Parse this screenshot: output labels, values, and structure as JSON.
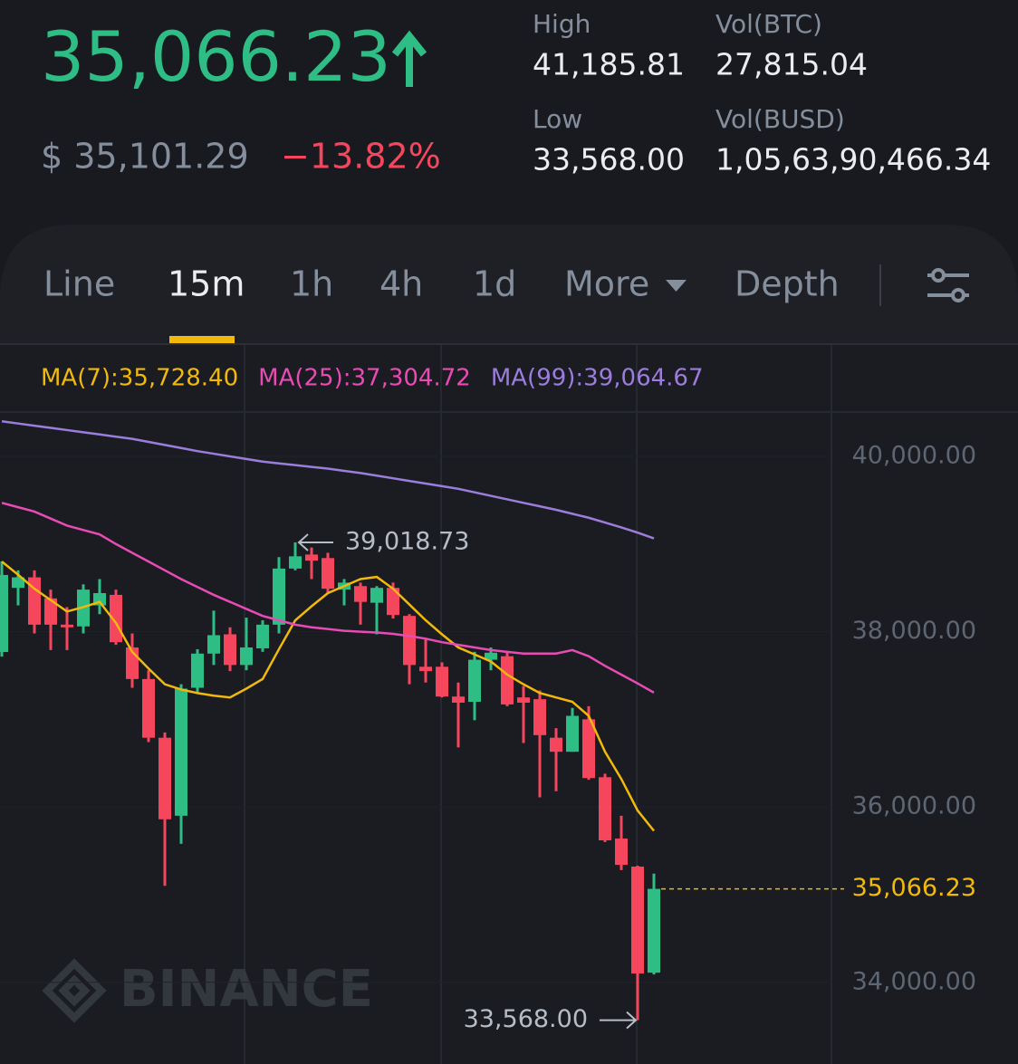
{
  "header": {
    "price": "35,066.23",
    "fiat_price": "$ 35,101.29",
    "change": "−13.82%",
    "stats": [
      {
        "label": "High",
        "value": "41,185.81"
      },
      {
        "label": "Vol(BTC)",
        "value": "27,815.04"
      },
      {
        "label": "Low",
        "value": "33,568.00"
      },
      {
        "label": "Vol(BUSD)",
        "value": "1,05,63,90,466.34"
      }
    ]
  },
  "tabs": [
    "Line",
    "15m",
    "1h",
    "4h",
    "1d",
    "More",
    "Depth"
  ],
  "active_tab": 1,
  "chart_data": {
    "type": "candlestick",
    "watermark": "BINANCE",
    "up_color": "#2ebd85",
    "down_color": "#f6465d",
    "open": [
      37768,
      38500,
      38620,
      38380,
      38080,
      38060,
      38300,
      38420,
      37820,
      37460,
      36790,
      35900,
      37360,
      37750,
      37970,
      37620,
      37810,
      38080,
      38720,
      38880,
      38840,
      38480,
      38520,
      38330,
      38500,
      38180,
      37600,
      37600,
      37260,
      37200,
      37680,
      37720,
      37250,
      37230,
      36790,
      36630,
      37000,
      36340,
      35640,
      35320,
      34110
    ],
    "high": [
      38802,
      38700,
      38700,
      38480,
      38280,
      38540,
      38600,
      38480,
      37980,
      37560,
      36850,
      37400,
      37800,
      38240,
      38050,
      38160,
      38130,
      38850,
      39018.73,
      38960,
      38900,
      38600,
      38560,
      38520,
      38560,
      38200,
      37920,
      37650,
      37420,
      37770,
      37820,
      37780,
      37380,
      37330,
      36900,
      37130,
      37150,
      36380,
      35900,
      35330,
      35240
    ],
    "low": [
      37716,
      38300,
      37980,
      37790,
      37790,
      37980,
      38200,
      37850,
      37360,
      36740,
      35100,
      35580,
      37300,
      37620,
      37550,
      37560,
      37770,
      37980,
      38700,
      38600,
      38440,
      38300,
      38080,
      37970,
      38150,
      37400,
      37420,
      37250,
      36680,
      36990,
      37560,
      37150,
      36730,
      36110,
      36180,
      36630,
      36310,
      35600,
      35280,
      33568,
      34090
    ],
    "close": [
      38647,
      38620,
      38080,
      38080,
      38050,
      38480,
      38440,
      37880,
      37460,
      36790,
      35860,
      37350,
      37750,
      37960,
      37620,
      37820,
      38080,
      38720,
      38860,
      38810,
      38490,
      38560,
      38340,
      38500,
      38190,
      37620,
      37550,
      37260,
      37190,
      37680,
      37760,
      37170,
      37190,
      36820,
      36630,
      37040,
      36330,
      35620,
      35340,
      34100,
      35066.23
    ],
    "series": [
      {
        "label": "MA(7):35,728.40",
        "color": "#f0b90b",
        "values": [
          38800,
          38650,
          38490,
          38360,
          38230,
          38280,
          38340,
          38100,
          37770,
          37580,
          37400,
          37340,
          37300,
          37270,
          37250,
          37350,
          37460,
          37800,
          38130,
          38290,
          38440,
          38520,
          38600,
          38625,
          38490,
          38310,
          38130,
          37970,
          37820,
          37740,
          37660,
          37510,
          37400,
          37300,
          37250,
          37200,
          37040,
          36630,
          36320,
          35960,
          35728.4
        ]
      },
      {
        "label": "MA(25):37,304.72",
        "color": "#e84bb4",
        "values": [
          39470,
          39420,
          39370,
          39290,
          39210,
          39160,
          39110,
          39000,
          38900,
          38800,
          38700,
          38600,
          38510,
          38420,
          38340,
          38260,
          38180,
          38130,
          38080,
          38050,
          38030,
          38010,
          38000,
          37990,
          37975,
          37950,
          37920,
          37880,
          37850,
          37820,
          37790,
          37770,
          37750,
          37750,
          37750,
          37790,
          37720,
          37610,
          37510,
          37410,
          37304.72
        ]
      },
      {
        "label": "MA(99):39,064.67",
        "color": "#9c7ddb",
        "values": [
          40400,
          40375,
          40350,
          40325,
          40300,
          40275,
          40250,
          40225,
          40200,
          40165,
          40130,
          40095,
          40060,
          40030,
          40000,
          39970,
          39940,
          39920,
          39900,
          39880,
          39860,
          39835,
          39810,
          39780,
          39750,
          39720,
          39690,
          39660,
          39630,
          39590,
          39550,
          39510,
          39470,
          39430,
          39390,
          39345,
          39300,
          39245,
          39190,
          39130,
          39064.67
        ]
      }
    ],
    "ylim": [
      33223,
      40506
    ],
    "yticks": [
      {
        "value": 34000,
        "label": "34,000.00"
      },
      {
        "value": 36000,
        "label": "36,000.00"
      },
      {
        "value": 38000,
        "label": "38,000.00"
      },
      {
        "value": 40000,
        "label": "40,000.00"
      }
    ],
    "max_marker": {
      "index": 18,
      "value": 39018.73,
      "label": "39,018.73"
    },
    "min_marker": {
      "index": 39,
      "value": 33568,
      "label": "33,568.00"
    },
    "last_price": {
      "value": 35066.23,
      "label": "35,066.23",
      "color": "#f0b90b"
    }
  }
}
